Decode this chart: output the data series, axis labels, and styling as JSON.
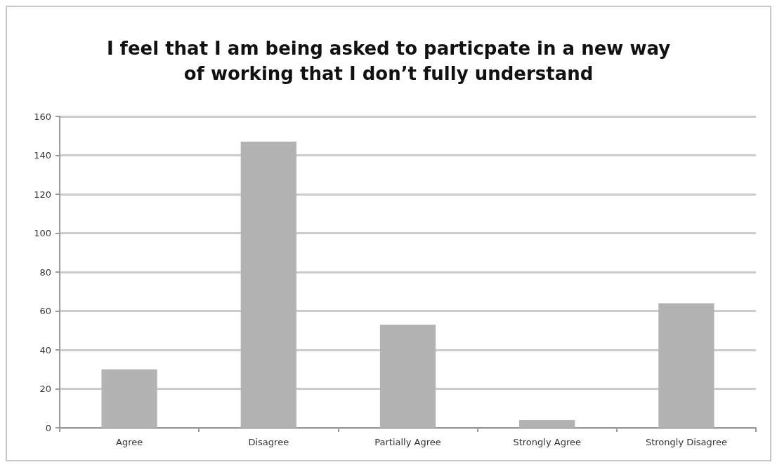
{
  "chart_data": {
    "type": "bar",
    "title": "I feel that I am being asked to particpate in a new way\nof working that I don’t fully understand",
    "categories": [
      "Agree",
      "Disagree",
      "Partially Agree",
      "Strongly Agree",
      "Strongly Disagree"
    ],
    "values": [
      30,
      147,
      53,
      4,
      64
    ],
    "color": "#b3b3b3",
    "ylim": [
      0,
      160
    ],
    "yticks": [
      0,
      20,
      40,
      60,
      80,
      100,
      120,
      140,
      160
    ],
    "grid": "y"
  }
}
